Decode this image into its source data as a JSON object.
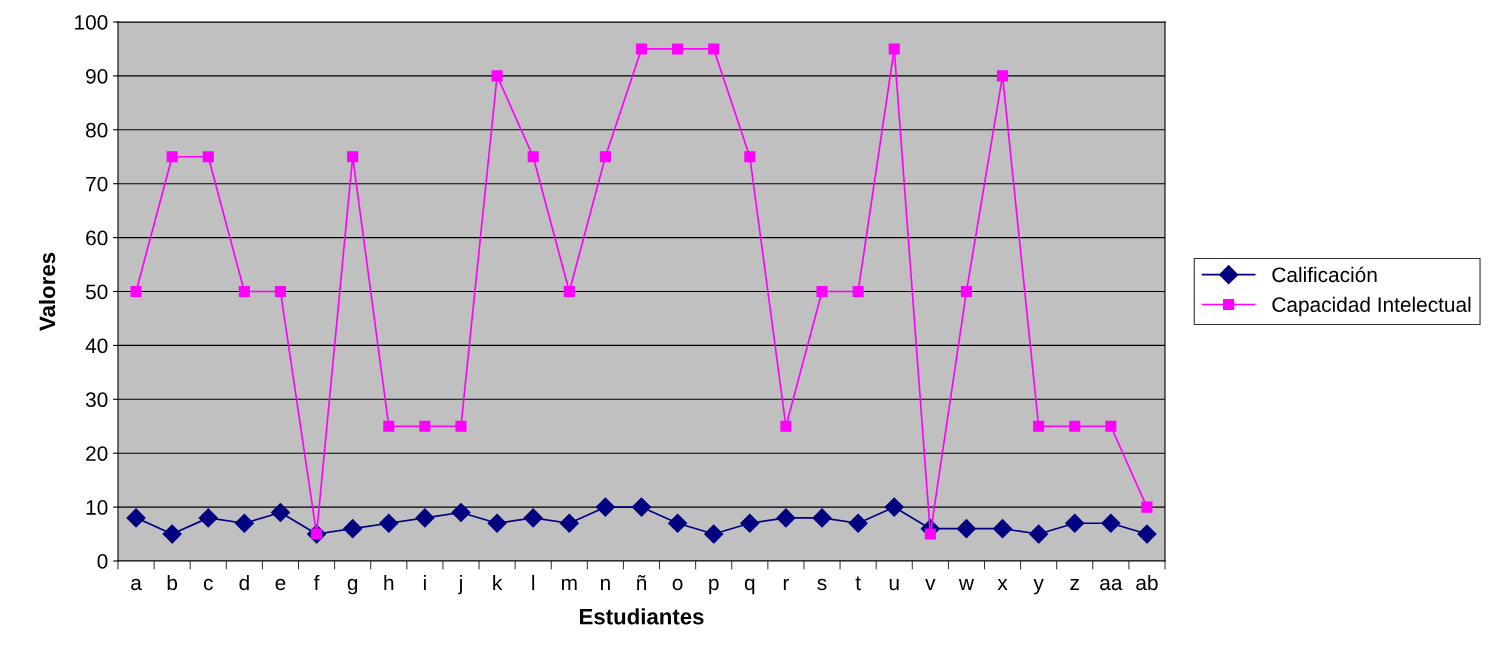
{
  "chart_data": {
    "type": "line",
    "xlabel": "Estudiantes",
    "ylabel": "Valores",
    "categories": [
      "a",
      "b",
      "c",
      "d",
      "e",
      "f",
      "g",
      "h",
      "i",
      "j",
      "k",
      "l",
      "m",
      "n",
      "ñ",
      "o",
      "p",
      "q",
      "r",
      "s",
      "t",
      "u",
      "v",
      "w",
      "x",
      "y",
      "z",
      "aa",
      "ab"
    ],
    "series": [
      {
        "name": "Calificación",
        "color": "#000080",
        "marker": "diamond",
        "values": [
          8,
          5,
          8,
          7,
          9,
          5,
          6,
          7,
          8,
          9,
          7,
          8,
          7,
          10,
          10,
          7,
          5,
          7,
          8,
          8,
          7,
          10,
          6,
          6,
          6,
          5,
          7,
          7,
          5
        ]
      },
      {
        "name": "Capacidad Intelectual",
        "color": "#ff00ff",
        "marker": "square",
        "values": [
          50,
          75,
          75,
          50,
          50,
          5,
          75,
          25,
          25,
          25,
          90,
          75,
          50,
          75,
          95,
          95,
          95,
          75,
          25,
          50,
          50,
          95,
          5,
          50,
          90,
          25,
          25,
          25,
          10
        ]
      }
    ],
    "ylim": [
      0,
      100
    ],
    "yticks": [
      0,
      10,
      20,
      30,
      40,
      50,
      60,
      70,
      80,
      90,
      100
    ],
    "grid": "y",
    "legend": "right",
    "line_style": "solid"
  }
}
